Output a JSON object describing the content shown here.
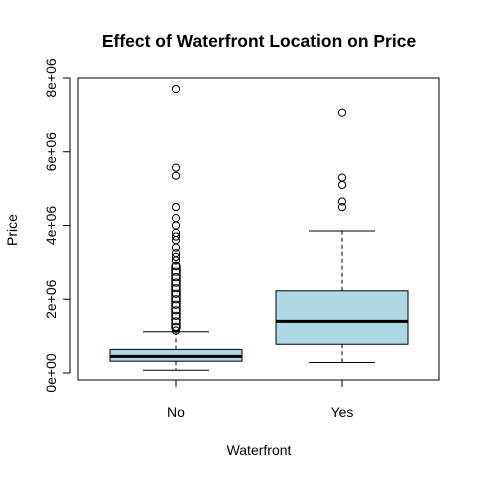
{
  "chart_data": {
    "type": "box",
    "title": "Effect of Waterfront Location on Price",
    "xlabel": "Waterfront",
    "ylabel": "Price",
    "ylim": [
      0,
      8000000
    ],
    "y_ticks": [
      {
        "value": 0,
        "label": "0e+00"
      },
      {
        "value": 2000000,
        "label": "2e+06"
      },
      {
        "value": 4000000,
        "label": "4e+06"
      },
      {
        "value": 6000000,
        "label": "6e+06"
      },
      {
        "value": 8000000,
        "label": "8e+06"
      }
    ],
    "categories": [
      "No",
      "Yes"
    ],
    "box_fill": "#add8e6",
    "boxes": [
      {
        "category": "No",
        "whisker_low": 75000,
        "q1": 320000,
        "median": 450000,
        "q3": 640000,
        "whisker_high": 1120000,
        "outlier_band": [
          1120000,
          3000000
        ],
        "outliers": [
          1150000,
          1250000,
          1400000,
          1550000,
          1700000,
          1850000,
          2000000,
          2150000,
          2300000,
          2450000,
          2600000,
          2750000,
          2900000,
          3050000,
          3150000,
          3250000,
          3400000,
          3600000,
          3700000,
          3800000,
          4000000,
          4200000,
          4500000,
          5350000,
          5570000,
          7700000
        ]
      },
      {
        "category": "Yes",
        "whisker_low": 285000,
        "q1": 780000,
        "median": 1400000,
        "q3": 2230000,
        "whisker_high": 3850000,
        "outliers": [
          4500000,
          4650000,
          5100000,
          5300000,
          7060000
        ]
      }
    ]
  }
}
